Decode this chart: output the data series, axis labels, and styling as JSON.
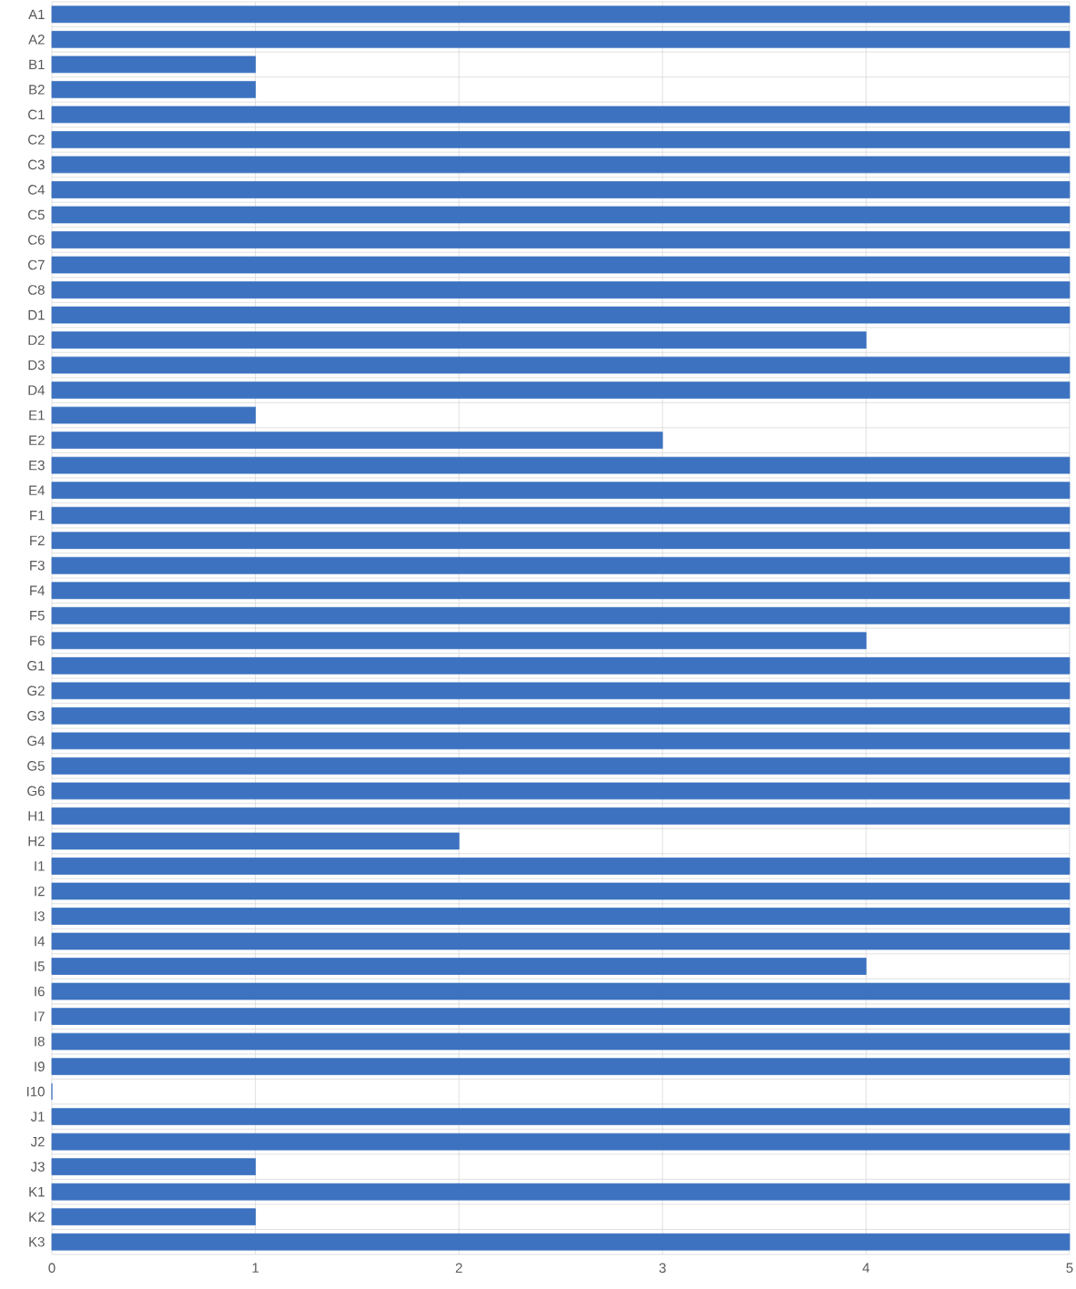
{
  "chart_data": {
    "type": "bar",
    "orientation": "horizontal",
    "categories": [
      "A1",
      "A2",
      "B1",
      "B2",
      "C1",
      "C2",
      "C3",
      "C4",
      "C5",
      "C6",
      "C7",
      "C8",
      "D1",
      "D2",
      "D3",
      "D4",
      "E1",
      "E2",
      "E3",
      "E4",
      "F1",
      "F2",
      "F3",
      "F4",
      "F5",
      "F6",
      "G1",
      "G2",
      "G3",
      "G4",
      "G5",
      "G6",
      "H1",
      "H2",
      "I1",
      "I2",
      "I3",
      "I4",
      "I5",
      "I6",
      "I7",
      "I8",
      "I9",
      "I10",
      "J1",
      "J2",
      "J3",
      "K1",
      "K2",
      "K3"
    ],
    "values": [
      5,
      5,
      1,
      1,
      5,
      5,
      5,
      5,
      5,
      5,
      5,
      5,
      5,
      4,
      5,
      5,
      1,
      3,
      5,
      5,
      5,
      5,
      5,
      5,
      5,
      4,
      5,
      5,
      5,
      5,
      5,
      5,
      5,
      2,
      5,
      5,
      5,
      5,
      4,
      5,
      5,
      5,
      5,
      0,
      5,
      5,
      1,
      5,
      1,
      5
    ],
    "color": "#3c72c0",
    "xlim": [
      0,
      5
    ],
    "xticks": [
      0,
      1,
      2,
      3,
      4,
      5
    ],
    "grid": true
  }
}
